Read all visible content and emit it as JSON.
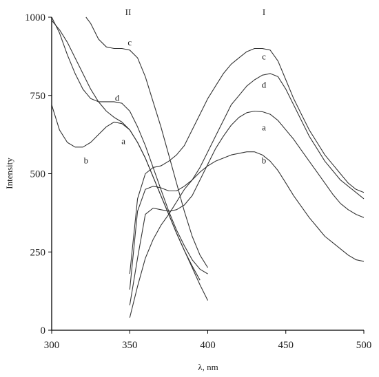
{
  "chart_data": {
    "type": "line",
    "title": "",
    "xlabel": "λ, nm",
    "ylabel": "Intensity",
    "xlim": [
      300,
      500
    ],
    "ylim": [
      0,
      1000
    ],
    "xticks": [
      300,
      350,
      400,
      450,
      500
    ],
    "yticks": [
      0,
      250,
      500,
      750,
      1000
    ],
    "grid": false,
    "group_labels": [
      {
        "text": "II",
        "x": 349,
        "y": 1015
      },
      {
        "text": "I",
        "x": 436,
        "y": 1015
      }
    ],
    "series": [
      {
        "label": "a",
        "group": "II",
        "x": [
          300,
          305,
          310,
          315,
          320,
          325,
          330,
          335,
          340,
          345,
          350,
          355,
          360,
          365,
          370,
          375,
          380,
          385,
          390,
          395,
          400
        ],
        "y": [
          990,
          960,
          920,
          870,
          820,
          770,
          730,
          700,
          680,
          665,
          640,
          600,
          550,
          490,
          430,
          370,
          310,
          255,
          200,
          145,
          95
        ],
        "label_pos": {
          "x": 346,
          "y": 595
        }
      },
      {
        "label": "b",
        "group": "II",
        "x": [
          300,
          305,
          310,
          315,
          320,
          325,
          330,
          335,
          340,
          345,
          350,
          355,
          360,
          365,
          370,
          375,
          380,
          385,
          390,
          395
        ],
        "y": [
          720,
          640,
          600,
          585,
          585,
          600,
          625,
          650,
          665,
          660,
          640,
          600,
          550,
          490,
          430,
          370,
          310,
          255,
          205,
          160
        ],
        "label_pos": {
          "x": 322,
          "y": 533
        }
      },
      {
        "label": "c",
        "group": "II",
        "x": [
          322,
          325,
          330,
          335,
          340,
          345,
          350,
          355,
          360,
          365,
          370,
          375,
          380,
          385,
          390,
          395,
          400
        ],
        "y": [
          1000,
          980,
          930,
          905,
          900,
          900,
          895,
          870,
          810,
          730,
          650,
          560,
          470,
          380,
          300,
          240,
          200
        ],
        "label_pos": {
          "x": 350,
          "y": 910
        }
      },
      {
        "label": "d",
        "group": "II",
        "x": [
          300,
          305,
          310,
          315,
          320,
          325,
          330,
          335,
          340,
          345,
          350,
          355,
          360,
          365,
          370,
          375,
          380,
          385,
          390,
          395,
          400
        ],
        "y": [
          1000,
          950,
          880,
          820,
          770,
          740,
          730,
          730,
          730,
          725,
          700,
          650,
          590,
          520,
          450,
          380,
          320,
          270,
          225,
          195,
          180
        ],
        "label_pos": {
          "x": 342,
          "y": 733
        }
      },
      {
        "label": "a",
        "group": "I",
        "x": [
          350,
          355,
          360,
          365,
          370,
          375,
          380,
          385,
          390,
          395,
          400,
          405,
          410,
          415,
          420,
          425,
          430,
          435,
          440,
          445,
          450,
          455,
          460,
          465,
          470,
          475,
          480,
          485,
          490,
          495,
          500
        ],
        "y": [
          80,
          230,
          370,
          390,
          385,
          380,
          385,
          400,
          430,
          480,
          530,
          580,
          620,
          655,
          680,
          695,
          700,
          698,
          690,
          670,
          640,
          610,
          575,
          540,
          505,
          470,
          435,
          405,
          385,
          370,
          360
        ],
        "label_pos": {
          "x": 436,
          "y": 638
        }
      },
      {
        "label": "b",
        "group": "I",
        "x": [
          350,
          355,
          360,
          365,
          370,
          375,
          380,
          385,
          390,
          395,
          400,
          405,
          410,
          415,
          420,
          425,
          430,
          435,
          440,
          445,
          450,
          455,
          460,
          465,
          470,
          475,
          480,
          485,
          490,
          495,
          500
        ],
        "y": [
          40,
          140,
          230,
          290,
          335,
          370,
          410,
          450,
          480,
          505,
          525,
          540,
          550,
          560,
          565,
          570,
          570,
          560,
          540,
          510,
          470,
          430,
          395,
          360,
          330,
          300,
          280,
          260,
          240,
          225,
          220
        ],
        "label_pos": {
          "x": 436,
          "y": 533
        }
      },
      {
        "label": "c",
        "group": "I",
        "x": [
          350,
          355,
          360,
          365,
          370,
          375,
          380,
          385,
          390,
          395,
          400,
          405,
          410,
          415,
          420,
          425,
          430,
          435,
          440,
          445,
          450,
          455,
          460,
          465,
          470,
          475,
          480,
          485,
          490,
          495,
          500
        ],
        "y": [
          180,
          420,
          500,
          520,
          525,
          540,
          560,
          590,
          640,
          690,
          740,
          780,
          820,
          850,
          870,
          890,
          900,
          900,
          895,
          860,
          800,
          740,
          690,
          640,
          600,
          560,
          530,
          500,
          470,
          450,
          440
        ],
        "label_pos": {
          "x": 436,
          "y": 865
        }
      },
      {
        "label": "d",
        "group": "I",
        "x": [
          350,
          355,
          360,
          365,
          370,
          375,
          380,
          385,
          390,
          395,
          400,
          405,
          410,
          415,
          420,
          425,
          430,
          435,
          440,
          445,
          450,
          455,
          460,
          465,
          470,
          475,
          480,
          485,
          490,
          495,
          500
        ],
        "y": [
          130,
          380,
          450,
          460,
          455,
          445,
          445,
          460,
          480,
          520,
          570,
          620,
          670,
          720,
          750,
          780,
          800,
          815,
          820,
          810,
          770,
          720,
          670,
          620,
          580,
          540,
          510,
          480,
          460,
          440,
          420
        ],
        "label_pos": {
          "x": 436,
          "y": 775
        }
      }
    ]
  }
}
